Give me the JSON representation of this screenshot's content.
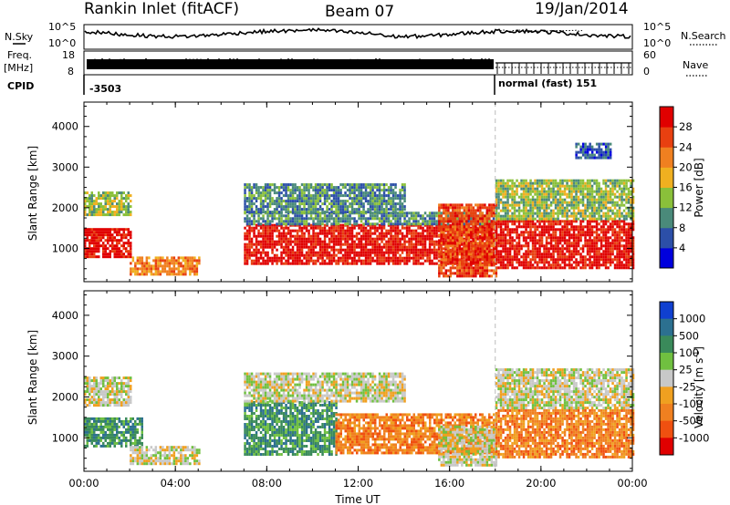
{
  "header": {
    "title": "Rankin Inlet (fitACF)",
    "beam": "Beam 07",
    "date": "19/Jan/2014"
  },
  "summary_panel": {
    "left_labels": {
      "nsky": "N.Sky",
      "freq_line1": "Freq.",
      "freq_line2": "[MHz]",
      "cpid": "CPID"
    },
    "right_labels": {
      "nsearch": "N.Search",
      "nave": "Nave"
    },
    "left_axis_nsky": [
      "10^5",
      "10^0"
    ],
    "left_axis_freq": [
      "18",
      "8"
    ],
    "right_axis_nsearch": [
      "10^5",
      "10^0"
    ],
    "right_axis_nave": [
      "60",
      "0"
    ],
    "cpid_before": "-3503",
    "cpid_after": "normal (fast) 151",
    "mode_change_hour": 18.0
  },
  "colors": {
    "power": [
      "#0000dd",
      "#2c4fa8",
      "#4a8a7a",
      "#8ac03a",
      "#f0b020",
      "#f08020",
      "#e84010",
      "#e00000"
    ],
    "velocity": [
      "#1040d0",
      "#2c7090",
      "#3a8a5a",
      "#70c040",
      "#c8c8c8",
      "#f0a020",
      "#f08020",
      "#f05010",
      "#e00000"
    ]
  },
  "chart_data": [
    {
      "type": "heatmap",
      "panel": "power",
      "xlabel": "Time UT",
      "ylabel": "Slant Range [km]",
      "xlim_hours": [
        0,
        24
      ],
      "ylim_km": [
        180,
        4600
      ],
      "x_ticks": [
        "00:00",
        "04:00",
        "08:00",
        "12:00",
        "16:00",
        "20:00",
        "00:00"
      ],
      "y_ticks": [
        1000,
        2000,
        3000,
        4000
      ],
      "colorbar": {
        "label": "Power [dB]",
        "ticks": [
          "28",
          "24",
          "20",
          "16",
          "12",
          "8",
          "4"
        ]
      },
      "regions": [
        {
          "t0": 0.0,
          "t1": 2.0,
          "r0": 800,
          "r1": 1500,
          "level": 7
        },
        {
          "t0": 0.0,
          "t1": 2.0,
          "r0": 1800,
          "r1": 2400,
          "level": 3
        },
        {
          "t0": 2.0,
          "t1": 5.0,
          "r0": 350,
          "r1": 800,
          "level": 5
        },
        {
          "t0": 7.0,
          "t1": 18.0,
          "r0": 600,
          "r1": 1600,
          "level": 7
        },
        {
          "t0": 7.0,
          "t1": 18.0,
          "r0": 1600,
          "r1": 1900,
          "level": 2
        },
        {
          "t0": 7.0,
          "t1": 14.0,
          "r0": 1900,
          "r1": 2600,
          "level": 2
        },
        {
          "t0": 15.5,
          "t1": 18.0,
          "r0": 300,
          "r1": 2100,
          "level": 6
        },
        {
          "t0": 18.0,
          "t1": 24.0,
          "r0": 500,
          "r1": 1700,
          "level": 7
        },
        {
          "t0": 18.0,
          "t1": 24.0,
          "r0": 1700,
          "r1": 2700,
          "level": 3
        },
        {
          "t0": 21.5,
          "t1": 23.0,
          "r0": 3200,
          "r1": 3600,
          "level": 1
        }
      ]
    },
    {
      "type": "heatmap",
      "panel": "velocity",
      "xlabel": "Time UT",
      "ylabel": "Slant Range [km]",
      "xlim_hours": [
        0,
        24
      ],
      "ylim_km": [
        180,
        4600
      ],
      "x_ticks": [
        "00:00",
        "04:00",
        "08:00",
        "12:00",
        "16:00",
        "20:00",
        "00:00"
      ],
      "y_ticks": [
        1000,
        2000,
        3000,
        4000
      ],
      "colorbar": {
        "label": "Velocity [m s^-1]",
        "ticks": [
          "1000",
          "500",
          "100",
          "25",
          "-25",
          "-100",
          "-500",
          "-1000"
        ]
      },
      "regions": [
        {
          "t0": 0.0,
          "t1": 2.5,
          "r0": 800,
          "r1": 1500,
          "level": 2
        },
        {
          "t0": 0.0,
          "t1": 2.0,
          "r0": 1800,
          "r1": 2500,
          "level": 4
        },
        {
          "t0": 2.0,
          "t1": 5.0,
          "r0": 350,
          "r1": 800,
          "level": 4
        },
        {
          "t0": 7.0,
          "t1": 11.0,
          "r0": 600,
          "r1": 1900,
          "level": 2
        },
        {
          "t0": 11.0,
          "t1": 18.0,
          "r0": 600,
          "r1": 1600,
          "level": 6
        },
        {
          "t0": 7.0,
          "t1": 14.0,
          "r0": 1900,
          "r1": 2600,
          "level": 4
        },
        {
          "t0": 15.5,
          "t1": 18.0,
          "r0": 300,
          "r1": 1300,
          "level": 4
        },
        {
          "t0": 18.0,
          "t1": 24.0,
          "r0": 500,
          "r1": 1700,
          "level": 6
        },
        {
          "t0": 18.0,
          "t1": 24.0,
          "r0": 1700,
          "r1": 2700,
          "level": 4
        }
      ]
    }
  ]
}
